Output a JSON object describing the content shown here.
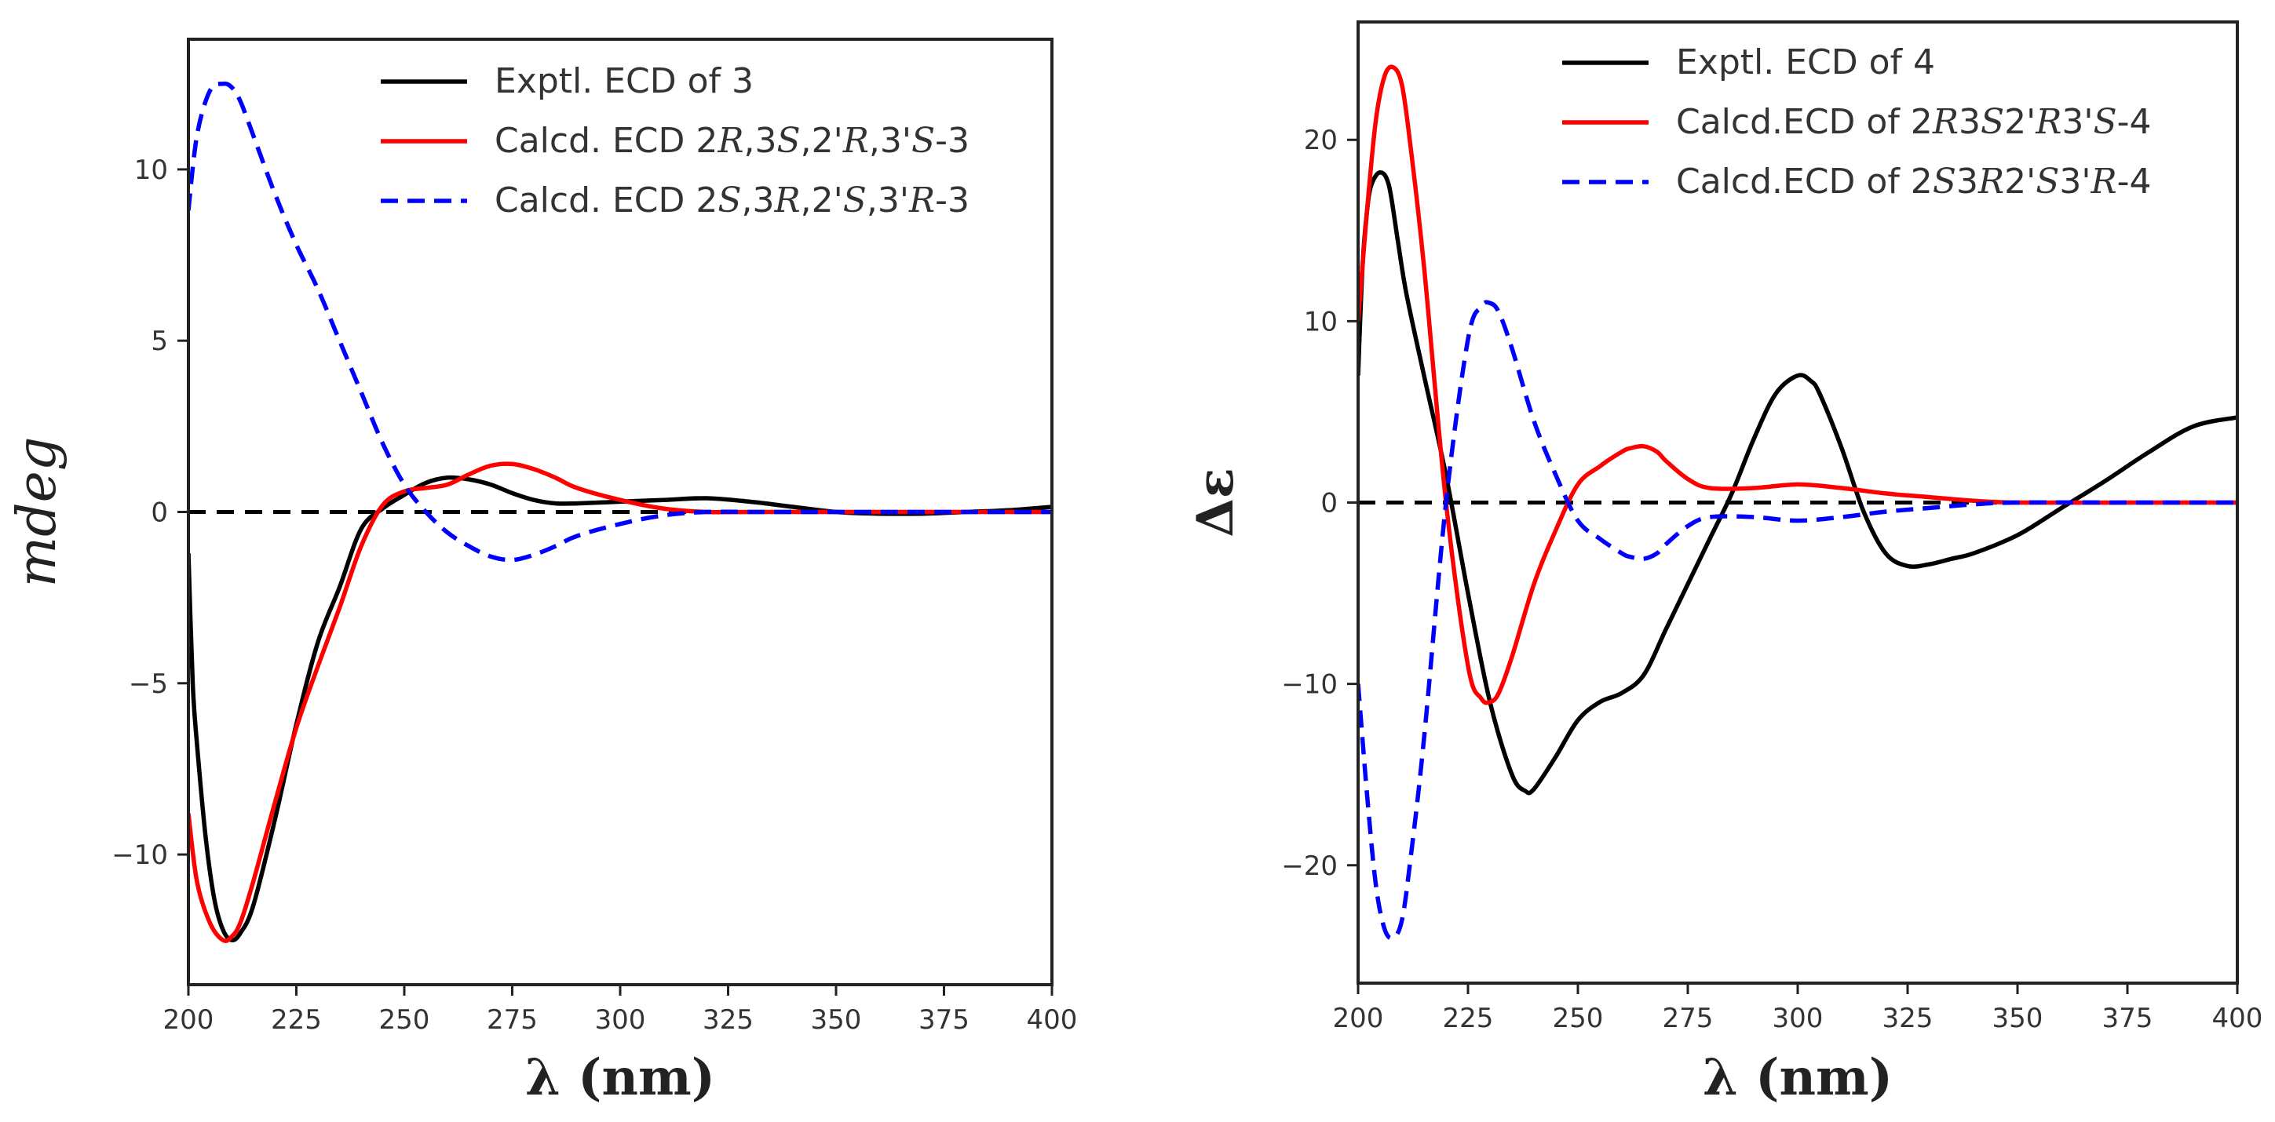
{
  "chart_data": [
    {
      "type": "line",
      "title": "",
      "xlabel": "λ (nm)",
      "ylabel": "mdeg",
      "xlim": [
        200,
        400
      ],
      "ylim": [
        -13.8,
        13.8
      ],
      "xticks": [
        200,
        225,
        250,
        275,
        300,
        325,
        350,
        375,
        400
      ],
      "xtick_labels": [
        "200",
        "225",
        "250",
        "275",
        "300",
        "325",
        "350",
        "375",
        "400"
      ],
      "yticks": [
        -10,
        -5,
        0,
        5,
        10
      ],
      "ytick_labels": [
        "−10",
        "−5",
        "0",
        "5",
        "10"
      ],
      "grid": false,
      "legend_position": "top-right",
      "zero_line": true,
      "series": [
        {
          "name": "Exptl. ECD of 3",
          "color": "#000000",
          "dash": "solid",
          "x": [
            200,
            201,
            202,
            204,
            206,
            208,
            210,
            212,
            215,
            220,
            225,
            230,
            235,
            240,
            245,
            250,
            255,
            260,
            265,
            270,
            275,
            280,
            285,
            290,
            300,
            310,
            320,
            330,
            340,
            350,
            360,
            370,
            380,
            390,
            400
          ],
          "y": [
            -1.2,
            -5.0,
            -6.8,
            -9.5,
            -11.3,
            -12.2,
            -12.5,
            -12.3,
            -11.5,
            -9.0,
            -6.2,
            -3.8,
            -2.2,
            -0.5,
            0.1,
            0.5,
            0.85,
            1.0,
            0.95,
            0.8,
            0.55,
            0.35,
            0.25,
            0.25,
            0.3,
            0.35,
            0.4,
            0.3,
            0.15,
            0.0,
            -0.05,
            -0.05,
            0.0,
            0.05,
            0.15
          ]
        },
        {
          "name": "Calcd. ECD 2R,3S,2'R,3'S-3",
          "name_parts": [
            "Calcd. ECD 2",
            "R",
            ",3",
            "S",
            ",2'",
            "R",
            ",3'",
            "S",
            "-3"
          ],
          "color": "#ff0000",
          "dash": "solid",
          "x": [
            200,
            202,
            205,
            208,
            210,
            212,
            215,
            220,
            225,
            230,
            235,
            240,
            245,
            250,
            255,
            260,
            265,
            270,
            275,
            280,
            285,
            290,
            300,
            310,
            320,
            330,
            340,
            350,
            375,
            400
          ],
          "y": [
            -8.8,
            -10.8,
            -12.0,
            -12.5,
            -12.4,
            -12.0,
            -10.8,
            -8.5,
            -6.3,
            -4.5,
            -2.8,
            -1.0,
            0.2,
            0.6,
            0.7,
            0.8,
            1.1,
            1.35,
            1.4,
            1.25,
            1.0,
            0.7,
            0.35,
            0.1,
            0.0,
            0.0,
            0.0,
            0.0,
            0.0,
            0.0
          ]
        },
        {
          "name": "Calcd. ECD 2S,3R,2'S,3'R-3",
          "name_parts": [
            "Calcd. ECD 2",
            "S",
            ",3",
            "R",
            ",2'",
            "S",
            ",3'",
            "R",
            "-3"
          ],
          "color": "#0000ff",
          "dash": "dashed",
          "x": [
            200,
            202,
            205,
            208,
            210,
            212,
            215,
            220,
            225,
            230,
            235,
            240,
            245,
            250,
            255,
            260,
            265,
            270,
            275,
            280,
            285,
            290,
            300,
            310,
            320,
            330,
            340,
            350,
            375,
            400
          ],
          "y": [
            8.8,
            11.0,
            12.3,
            12.5,
            12.4,
            12.0,
            11.0,
            9.3,
            7.8,
            6.5,
            5.0,
            3.5,
            2.0,
            0.8,
            0.0,
            -0.6,
            -1.0,
            -1.3,
            -1.4,
            -1.25,
            -1.0,
            -0.7,
            -0.35,
            -0.1,
            0.0,
            0.0,
            0.0,
            0.0,
            0.0,
            0.0
          ]
        }
      ]
    },
    {
      "type": "line",
      "title": "",
      "xlabel": "λ (nm)",
      "ylabel": "Δε",
      "xlim": [
        200,
        400
      ],
      "ylim": [
        -26.5,
        26.5
      ],
      "xticks": [
        200,
        225,
        250,
        275,
        300,
        325,
        350,
        375,
        400
      ],
      "xtick_labels": [
        "200",
        "225",
        "250",
        "275",
        "300",
        "325",
        "350",
        "375",
        "400"
      ],
      "yticks": [
        -20,
        -10,
        0,
        10,
        20
      ],
      "ytick_labels": [
        "−20",
        "−10",
        "0",
        "10",
        "20"
      ],
      "grid": false,
      "legend_position": "top-right",
      "zero_line": true,
      "series": [
        {
          "name": "Exptl. ECD of 4",
          "color": "#000000",
          "dash": "solid",
          "x": [
            200,
            201,
            202,
            203,
            205,
            207,
            209,
            211,
            215,
            220,
            225,
            230,
            235,
            238,
            240,
            245,
            250,
            255,
            260,
            265,
            270,
            275,
            280,
            285,
            290,
            295,
            300,
            303,
            305,
            310,
            315,
            320,
            325,
            330,
            335,
            340,
            350,
            360,
            370,
            380,
            390,
            400
          ],
          "y": [
            7.0,
            13.0,
            16.0,
            17.5,
            18.2,
            17.5,
            14.5,
            11.5,
            7.0,
            1.5,
            -5.0,
            -11.0,
            -15.0,
            -15.9,
            -15.8,
            -14.0,
            -12.0,
            -11.0,
            -10.5,
            -9.5,
            -7.0,
            -4.5,
            -2.0,
            0.5,
            3.5,
            6.0,
            7.0,
            6.7,
            6.0,
            3.0,
            -0.5,
            -2.8,
            -3.5,
            -3.4,
            -3.1,
            -2.8,
            -1.8,
            -0.3,
            1.2,
            2.8,
            4.2,
            4.7
          ]
        },
        {
          "name": "Calcd.ECD of 2R3S2'R3'S-4",
          "name_parts": [
            "Calcd.ECD of 2",
            "R",
            "3",
            "S",
            "2'",
            "R",
            "3'",
            "S",
            "-4"
          ],
          "color": "#ff0000",
          "dash": "solid",
          "x": [
            200,
            202,
            204,
            206,
            208,
            210,
            212,
            215,
            220,
            225,
            228,
            230,
            232,
            235,
            240,
            245,
            250,
            255,
            260,
            262,
            265,
            268,
            270,
            275,
            280,
            290,
            300,
            310,
            320,
            330,
            340,
            350,
            375,
            400
          ],
          "y": [
            10.0,
            16.0,
            21.0,
            23.5,
            24.0,
            23.0,
            19.5,
            13.0,
            0.0,
            -9.0,
            -10.8,
            -11.0,
            -10.5,
            -8.5,
            -4.5,
            -1.5,
            1.0,
            2.0,
            2.8,
            3.0,
            3.1,
            2.8,
            2.3,
            1.3,
            0.8,
            0.8,
            1.0,
            0.8,
            0.5,
            0.3,
            0.1,
            0.0,
            0.0,
            0.0
          ]
        },
        {
          "name": "Calcd.ECD of 2S3R2'S3'R-4",
          "name_parts": [
            "Calcd.ECD of 2",
            "S",
            "3",
            "R",
            "2'",
            "S",
            "3'",
            "R",
            "-4"
          ],
          "color": "#0000ff",
          "dash": "dashed",
          "x": [
            200,
            202,
            204,
            206,
            208,
            210,
            212,
            215,
            220,
            225,
            228,
            230,
            232,
            235,
            240,
            245,
            250,
            255,
            260,
            262,
            265,
            268,
            270,
            275,
            280,
            290,
            300,
            310,
            320,
            330,
            340,
            350,
            375,
            400
          ],
          "y": [
            -10.0,
            -16.0,
            -21.0,
            -23.5,
            -24.0,
            -23.0,
            -19.5,
            -13.0,
            0.0,
            9.0,
            10.8,
            11.0,
            10.5,
            8.5,
            4.5,
            1.5,
            -1.0,
            -2.0,
            -2.8,
            -3.0,
            -3.1,
            -2.8,
            -2.3,
            -1.3,
            -0.8,
            -0.8,
            -1.0,
            -0.8,
            -0.5,
            -0.3,
            -0.1,
            0.0,
            0.0,
            0.0
          ]
        }
      ]
    }
  ]
}
